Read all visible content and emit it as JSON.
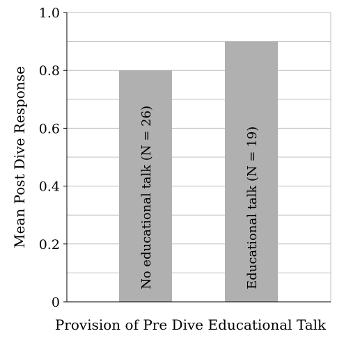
{
  "chart_data": {
    "type": "bar",
    "categories": [
      "No educational talk (N = 26)",
      "Educational talk (N = 19)"
    ],
    "values": [
      0.8,
      0.9
    ],
    "xlabel": "Provision of Pre Dive Educational Talk",
    "ylabel": "Mean Post Dive Response",
    "ylim": [
      0,
      1.0
    ],
    "yticks": [
      0,
      0.2,
      0.4,
      0.6,
      0.8,
      1.0
    ],
    "ytick_labels": [
      "0",
      "0.2",
      "0.4",
      "0.6",
      "0.8",
      "1.0"
    ],
    "grid": true,
    "bar_color": "#b0b0b0",
    "grid_color": "#bdbdbd"
  }
}
